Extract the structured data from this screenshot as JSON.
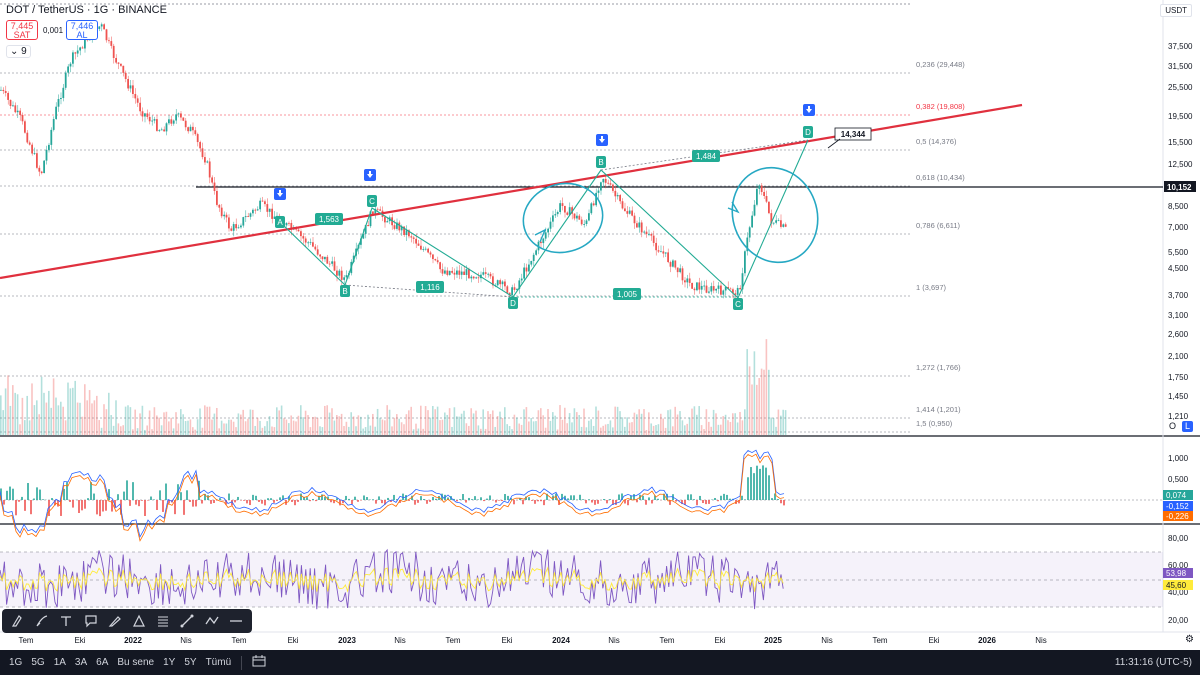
{
  "header": {
    "symbol_line": "DOT / TetherUS · 1G · BINANCE",
    "sell_price": "7,445",
    "sell_label": "SAT",
    "spread": "0,001",
    "buy_price": "7,446",
    "buy_label": "AL",
    "indicator_badge": "9",
    "currency": "USDT"
  },
  "price_axis": {
    "ticks": [
      "37,500",
      "31,500",
      "25,500",
      "19,500",
      "15,500",
      "12,500",
      "8,500",
      "7,000",
      "5,500",
      "4,500",
      "3,700",
      "3,100",
      "2,600",
      "2,100",
      "1,750",
      "1,450",
      "1,210"
    ],
    "current_price": "10,152",
    "current_price_color": "#131722"
  },
  "fib_levels": [
    {
      "label": "0,236 (29,448)",
      "color": "#787b86"
    },
    {
      "label": "0,382 (19,808)",
      "color": "#f23645"
    },
    {
      "label": "0,5 (14,376)",
      "color": "#787b86"
    },
    {
      "label": "0,618 (10,434)",
      "color": "#787b86"
    },
    {
      "label": "0,786 (6,611)",
      "color": "#787b86"
    },
    {
      "label": "1 (3,697)",
      "color": "#787b86"
    },
    {
      "label": "1,272 (1,766)",
      "color": "#787b86"
    },
    {
      "label": "1,414 (1,201)",
      "color": "#787b86"
    },
    {
      "label": "1,5 (0,950)",
      "color": "#787b86"
    }
  ],
  "pattern_points": [
    {
      "label": "A"
    },
    {
      "label": "B"
    },
    {
      "label": "C"
    },
    {
      "label": "D"
    },
    {
      "label": "B"
    },
    {
      "label": "C"
    },
    {
      "label": "D"
    }
  ],
  "ratio_labels": [
    "1,563",
    "1,116",
    "1,484",
    "1,005"
  ],
  "target_label": "14,344",
  "macd": {
    "axis": [
      "1,000",
      "0,500"
    ],
    "values": {
      "hist": "0,074",
      "macd": "-0,152",
      "signal": "-0,226"
    },
    "colors": {
      "hist": "#26a69a",
      "macd": "#2962ff",
      "signal": "#ff6d00"
    }
  },
  "rsi": {
    "axis": [
      "80,00",
      "60,00",
      "40,00",
      "20,00"
    ],
    "value": "53,98",
    "ma_value": "45,60",
    "colors": {
      "rsi": "#7e57c2",
      "ma": "#ffeb3b"
    }
  },
  "time_axis": [
    "Tem",
    "Eki",
    "2022",
    "Nis",
    "Tem",
    "Eki",
    "2023",
    "Nis",
    "Tem",
    "Eki",
    "2024",
    "Nis",
    "Tem",
    "Eki",
    "2025",
    "Nis",
    "Tem",
    "Eki",
    "2026",
    "Nis"
  ],
  "volume_buttons": {
    "o": "O",
    "l": "L"
  },
  "bottom_bar": {
    "ranges": [
      "1G",
      "5G",
      "1A",
      "3A",
      "6A",
      "Bu sene",
      "1Y",
      "5Y",
      "Tümü"
    ],
    "clock": "11:31:16 (UTC-5)"
  },
  "toolbar_icons": [
    "cursor-icon",
    "pen-icon",
    "text-icon",
    "note-icon",
    "brush-icon",
    "shape-icon",
    "fib-icon",
    "line-icon",
    "path-icon",
    "horizontal-line-icon"
  ],
  "colors": {
    "trendline": "#e0303e",
    "pattern": "#22ab94",
    "highlight_circle": "#26a8c3",
    "signal_arrow": "#2962ff"
  }
}
